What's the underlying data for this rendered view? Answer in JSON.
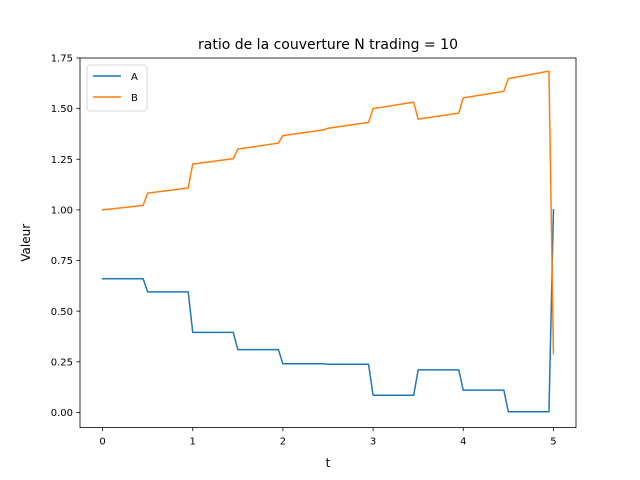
{
  "chart_data": {
    "type": "line",
    "title": "ratio de la couverture N trading = 10",
    "xlabel": "t",
    "ylabel": "Valeur",
    "xlim": [
      -0.25,
      5.25
    ],
    "ylim": [
      -0.075,
      1.75
    ],
    "xticks": [
      0,
      1,
      2,
      3,
      4,
      5
    ],
    "xtick_labels": [
      "0",
      "1",
      "2",
      "3",
      "4",
      "5"
    ],
    "yticks": [
      0.0,
      0.25,
      0.5,
      0.75,
      1.0,
      1.25,
      1.5,
      1.75
    ],
    "ytick_labels": [
      "0.00",
      "0.25",
      "0.50",
      "0.75",
      "1.00",
      "1.25",
      "1.50",
      "1.75"
    ],
    "grid": false,
    "legend_position": "upper-left",
    "series": [
      {
        "name": "A",
        "color": "#1f77b4",
        "x": [
          0,
          0.45,
          0.5,
          0.95,
          1.0,
          1.45,
          1.5,
          1.95,
          2.0,
          2.45,
          2.5,
          2.95,
          3.0,
          3.45,
          3.5,
          3.95,
          4.0,
          4.45,
          4.5,
          4.95,
          5.0
        ],
        "y": [
          0.66,
          0.66,
          0.595,
          0.595,
          0.395,
          0.395,
          0.31,
          0.31,
          0.24,
          0.24,
          0.238,
          0.238,
          0.085,
          0.085,
          0.21,
          0.21,
          0.11,
          0.11,
          0.003,
          0.003,
          1.0
        ]
      },
      {
        "name": "B",
        "color": "#ff7f0e",
        "x": [
          0,
          0.45,
          0.5,
          0.95,
          1.0,
          1.45,
          1.5,
          1.95,
          2.0,
          2.45,
          2.5,
          2.95,
          3.0,
          3.45,
          3.5,
          3.95,
          4.0,
          4.45,
          4.5,
          4.95,
          5.0
        ],
        "y": [
          1.0,
          1.022,
          1.083,
          1.108,
          1.226,
          1.253,
          1.3,
          1.33,
          1.367,
          1.395,
          1.403,
          1.432,
          1.5,
          1.532,
          1.448,
          1.478,
          1.553,
          1.585,
          1.648,
          1.685,
          0.29
        ]
      }
    ]
  }
}
